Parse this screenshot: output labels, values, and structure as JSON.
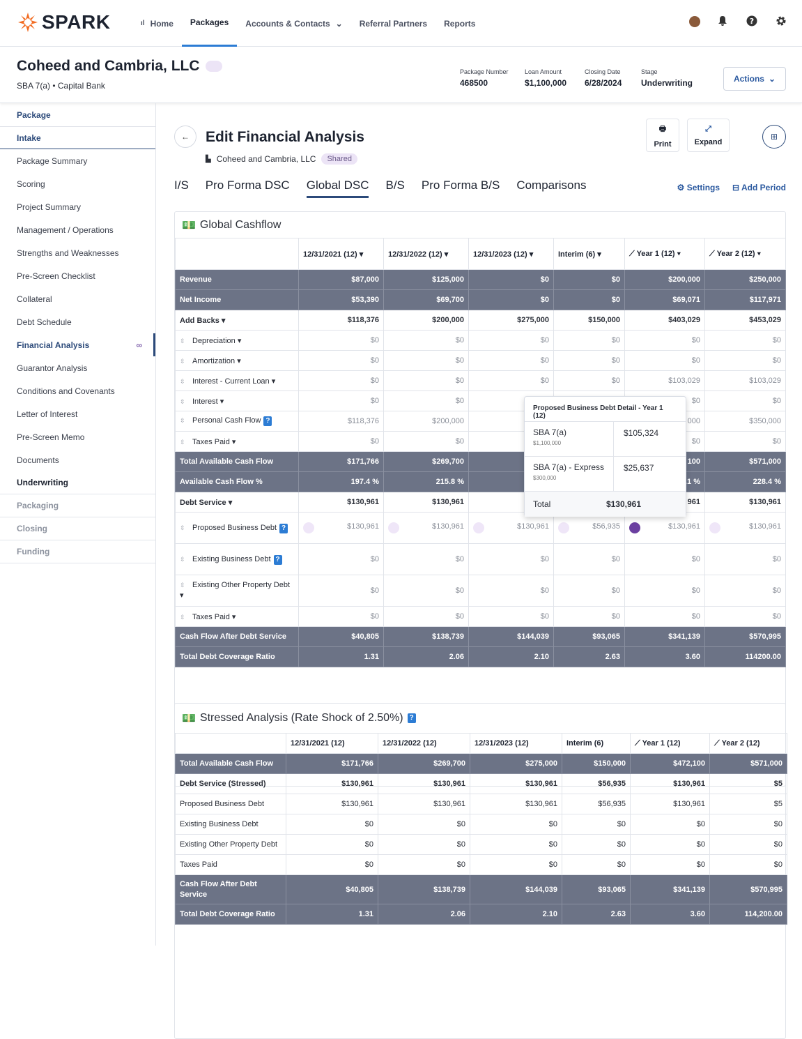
{
  "brand": "SPARK",
  "nav": [
    "Home",
    "Packages",
    "Accounts & Contacts",
    "Referral Partners",
    "Reports"
  ],
  "package": {
    "title": "Coheed and Cambria, LLC",
    "sub": "SBA 7(a) • Capital Bank",
    "number_label": "Package Number",
    "number": "468500",
    "loan_label": "Loan Amount",
    "loan": "$1,100,000",
    "closing_label": "Closing Date",
    "closing": "6/28/2024",
    "stage_label": "Stage",
    "stage": "Underwriting",
    "actions": "Actions"
  },
  "sidebar": [
    "Package",
    "Intake",
    "Package Summary",
    "Scoring",
    "Project Summary",
    "Management / Operations",
    "Strengths and Weaknesses",
    "Pre-Screen Checklist",
    "Collateral",
    "Debt Schedule",
    "Financial Analysis",
    "Guarantor Analysis",
    "Conditions and Covenants",
    "Letter of Interest",
    "Pre-Screen Memo",
    "Documents",
    "Underwriting",
    "Packaging",
    "Closing",
    "Funding"
  ],
  "page": {
    "title": "Edit Financial Analysis",
    "company": "Coheed and Cambria, LLC",
    "shared": "Shared",
    "print": "Print",
    "expand": "Expand",
    "settings": "Settings",
    "add_period": "Add Period"
  },
  "tabs": [
    "I/S",
    "Pro Forma DSC",
    "Global DSC",
    "B/S",
    "Pro Forma B/S",
    "Comparisons"
  ],
  "global": {
    "title": "Global Cashflow",
    "cols": [
      "12/31/2021 (12)",
      "12/31/2022 (12)",
      "12/31/2023 (12)",
      "Interim (6)",
      "Year 1 (12)",
      "Year 2 (12)"
    ],
    "rows": [
      {
        "label": "Revenue",
        "style": "dk",
        "v": [
          "$87,000",
          "$125,000",
          "$0",
          "$0",
          "$200,000",
          "$250,000"
        ]
      },
      {
        "label": "Net Income",
        "style": "dk",
        "v": [
          "$53,390",
          "$69,700",
          "$0",
          "$0",
          "$69,071",
          "$117,971"
        ]
      },
      {
        "label": "Add Backs ▾",
        "style": "b",
        "v": [
          "$118,376",
          "$200,000",
          "$275,000",
          "$150,000",
          "$403,029",
          "$453,029"
        ]
      },
      {
        "label": "Depreciation ▾",
        "style": "lt",
        "sort": true,
        "v": [
          "$0",
          "$0",
          "$0",
          "$0",
          "$0",
          "$0"
        ]
      },
      {
        "label": "Amortization ▾",
        "style": "lt",
        "sort": true,
        "v": [
          "$0",
          "$0",
          "$0",
          "$0",
          "$0",
          "$0"
        ]
      },
      {
        "label": "Interest - Current Loan ▾",
        "style": "lt",
        "sort": true,
        "v": [
          "$0",
          "$0",
          "$0",
          "$0",
          "$103,029",
          "$103,029"
        ]
      },
      {
        "label": "Interest ▾",
        "style": "lt",
        "sort": true,
        "v": [
          "$0",
          "$0",
          "",
          "",
          "$0",
          "$0"
        ]
      },
      {
        "label": "Personal Cash Flow",
        "style": "lt",
        "sort": true,
        "q": true,
        "v": [
          "$118,376",
          "$200,000",
          "$2",
          "",
          "000",
          "$350,000"
        ]
      },
      {
        "label": "Taxes Paid ▾",
        "style": "lt",
        "sort": true,
        "v": [
          "$0",
          "$0",
          "",
          "",
          "$0",
          "$0"
        ]
      },
      {
        "label": "Total Available Cash Flow",
        "style": "dk",
        "v": [
          "$171,766",
          "$269,700",
          "$2",
          "",
          "100",
          "$571,000"
        ]
      },
      {
        "label": "Available Cash Flow %",
        "style": "dk",
        "v": [
          "197.4 %",
          "215.8 %",
          "",
          "",
          ".1 %",
          "228.4 %"
        ]
      },
      {
        "label": "Debt Service ▾",
        "style": "b",
        "v": [
          "$130,961",
          "$130,961",
          "$1",
          "",
          "961",
          "$130,961"
        ]
      },
      {
        "label": "Proposed Business Debt",
        "style": "lt",
        "sort": true,
        "q": true,
        "tall": true,
        "v": [
          "$130,961",
          "$130,961",
          "$130,961",
          "$56,935",
          "$130,961",
          "$130,961"
        ]
      },
      {
        "label": "Existing Business Debt",
        "style": "lt",
        "sort": true,
        "q": true,
        "tall": true,
        "v": [
          "$0",
          "$0",
          "$0",
          "$0",
          "$0",
          "$0"
        ]
      },
      {
        "label": "Existing Other Property Debt ▾",
        "style": "lt",
        "sort": true,
        "tall": true,
        "v": [
          "$0",
          "$0",
          "$0",
          "$0",
          "$0",
          "$0"
        ]
      },
      {
        "label": "Taxes Paid ▾",
        "style": "lt",
        "sort": true,
        "v": [
          "$0",
          "$0",
          "$0",
          "$0",
          "$0",
          "$0"
        ]
      },
      {
        "label": "Cash Flow After Debt Service",
        "style": "dk",
        "v": [
          "$40,805",
          "$138,739",
          "$144,039",
          "$93,065",
          "$341,139",
          "$570,995"
        ]
      },
      {
        "label": "Total Debt Coverage Ratio",
        "style": "dk",
        "v": [
          "1.31",
          "2.06",
          "2.10",
          "2.63",
          "3.60",
          "114200.00"
        ]
      }
    ]
  },
  "tooltip": {
    "title": "Proposed Business Debt Detail - Year 1 (12)",
    "items": [
      {
        "name": "SBA 7(a)",
        "sub": "$1,100,000",
        "val": "$105,324"
      },
      {
        "name": "SBA 7(a) - Express",
        "sub": "$300,000",
        "val": "$25,637"
      }
    ],
    "total_label": "Total",
    "total": "$130,961"
  },
  "stressed": {
    "title": "Stressed Analysis (Rate Shock of 2.50%)",
    "cols": [
      "12/31/2021 (12)",
      "12/31/2022 (12)",
      "12/31/2023 (12)",
      "Interim (6)",
      "Year 1 (12)",
      "Year 2 (12)"
    ],
    "rows": [
      {
        "label": "Total Available Cash Flow",
        "style": "dk",
        "v": [
          "$171,766",
          "$269,700",
          "$275,000",
          "$150,000",
          "$472,100",
          "$571,000"
        ]
      },
      {
        "label": "Debt Service (Stressed)",
        "style": "b",
        "v": [
          "$130,961",
          "$130,961",
          "$130,961",
          "$56,935",
          "$130,961",
          "$5"
        ]
      },
      {
        "label": "Proposed Business Debt",
        "style": "",
        "v": [
          "$130,961",
          "$130,961",
          "$130,961",
          "$56,935",
          "$130,961",
          "$5"
        ]
      },
      {
        "label": "Existing Business Debt",
        "style": "",
        "v": [
          "$0",
          "$0",
          "$0",
          "$0",
          "$0",
          "$0"
        ]
      },
      {
        "label": "Existing Other Property Debt",
        "style": "",
        "v": [
          "$0",
          "$0",
          "$0",
          "$0",
          "$0",
          "$0"
        ]
      },
      {
        "label": "Taxes Paid",
        "style": "",
        "v": [
          "$0",
          "$0",
          "$0",
          "$0",
          "$0",
          "$0"
        ]
      },
      {
        "label": "Cash Flow After Debt Service",
        "style": "dk",
        "tall": true,
        "v": [
          "$40,805",
          "$138,739",
          "$144,039",
          "$93,065",
          "$341,139",
          "$570,995"
        ]
      },
      {
        "label": "Total Debt Coverage Ratio",
        "style": "dk",
        "v": [
          "1.31",
          "2.06",
          "2.10",
          "2.63",
          "3.60",
          "114,200.00"
        ]
      }
    ]
  }
}
